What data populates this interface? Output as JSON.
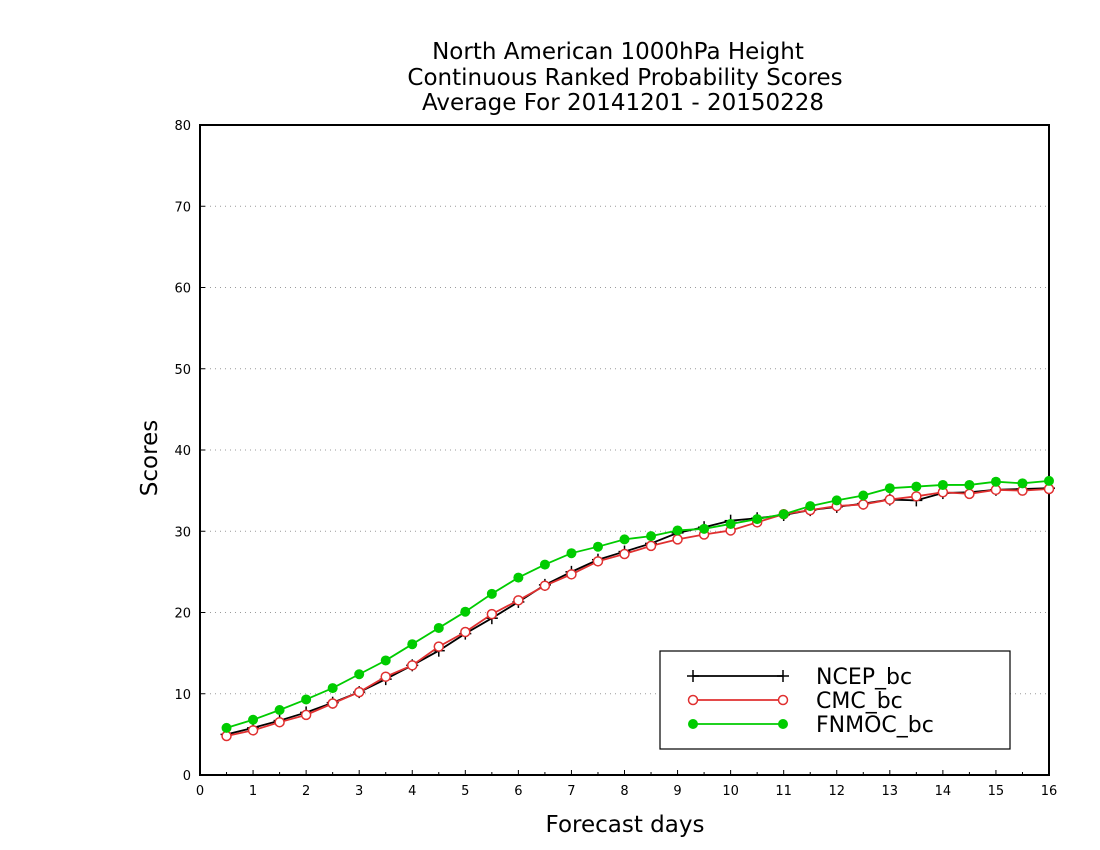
{
  "chart_data": {
    "type": "line",
    "title_lines": [
      "North American 1000hPa Height",
      "Continuous Ranked Probability Scores",
      "Average For 20141201 - 20150228"
    ],
    "xlabel": "Forecast days",
    "ylabel": "Scores",
    "xlim": [
      0,
      16
    ],
    "ylim": [
      0,
      80
    ],
    "x_ticks": [
      0,
      1,
      2,
      3,
      4,
      5,
      6,
      7,
      8,
      9,
      10,
      11,
      12,
      13,
      14,
      15,
      16
    ],
    "x_tick_labels": [
      "0",
      "1",
      "2",
      "3",
      "4",
      "5",
      "6",
      "7",
      "8",
      "9",
      "10",
      "11",
      "12",
      "13",
      "14",
      "15",
      "16"
    ],
    "y_ticks": [
      0,
      10,
      20,
      30,
      40,
      50,
      60,
      70,
      80
    ],
    "y_tick_labels": [
      "0",
      "10",
      "20",
      "30",
      "40",
      "50",
      "60",
      "70",
      "80"
    ],
    "grid": "horizontal dotted",
    "legend_position": "bottom-right",
    "x": [
      0.5,
      1,
      1.5,
      2,
      2.5,
      3,
      3.5,
      4,
      4.5,
      5,
      5.5,
      6,
      6.5,
      7,
      7.5,
      8,
      8.5,
      9,
      9.5,
      10,
      10.5,
      11,
      11.5,
      12,
      12.5,
      13,
      13.5,
      14,
      14.5,
      15,
      15.5,
      16
    ],
    "series": [
      {
        "name": "NCEP_bc",
        "color": "#000000",
        "marker": "plus",
        "values": [
          5.0,
          5.8,
          6.7,
          7.7,
          8.9,
          10.2,
          11.8,
          13.5,
          15.3,
          17.4,
          19.3,
          21.3,
          23.4,
          25.0,
          26.5,
          27.5,
          28.5,
          29.8,
          30.5,
          31.3,
          31.6,
          32.0,
          32.6,
          33.0,
          33.4,
          33.9,
          33.8,
          34.7,
          34.8,
          35.1,
          35.2,
          35.3
        ]
      },
      {
        "name": "CMC_bc",
        "color": "#e03030",
        "marker": "open-circle",
        "values": [
          4.8,
          5.5,
          6.5,
          7.4,
          8.8,
          10.2,
          12.1,
          13.5,
          15.8,
          17.6,
          19.8,
          21.5,
          23.3,
          24.7,
          26.3,
          27.2,
          28.2,
          29.0,
          29.6,
          30.1,
          31.1,
          32.1,
          32.6,
          33.1,
          33.3,
          33.9,
          34.3,
          34.8,
          34.6,
          35.1,
          35.0,
          35.2
        ]
      },
      {
        "name": "FNMOC_bc",
        "color": "#00cc00",
        "marker": "filled-circle",
        "values": [
          5.8,
          6.8,
          8.0,
          9.3,
          10.7,
          12.4,
          14.1,
          16.1,
          18.1,
          20.1,
          22.3,
          24.3,
          25.9,
          27.3,
          28.1,
          29.0,
          29.4,
          30.1,
          30.3,
          30.9,
          31.5,
          32.1,
          33.1,
          33.8,
          34.4,
          35.3,
          35.5,
          35.7,
          35.7,
          36.1,
          35.9,
          36.2
        ]
      }
    ]
  }
}
